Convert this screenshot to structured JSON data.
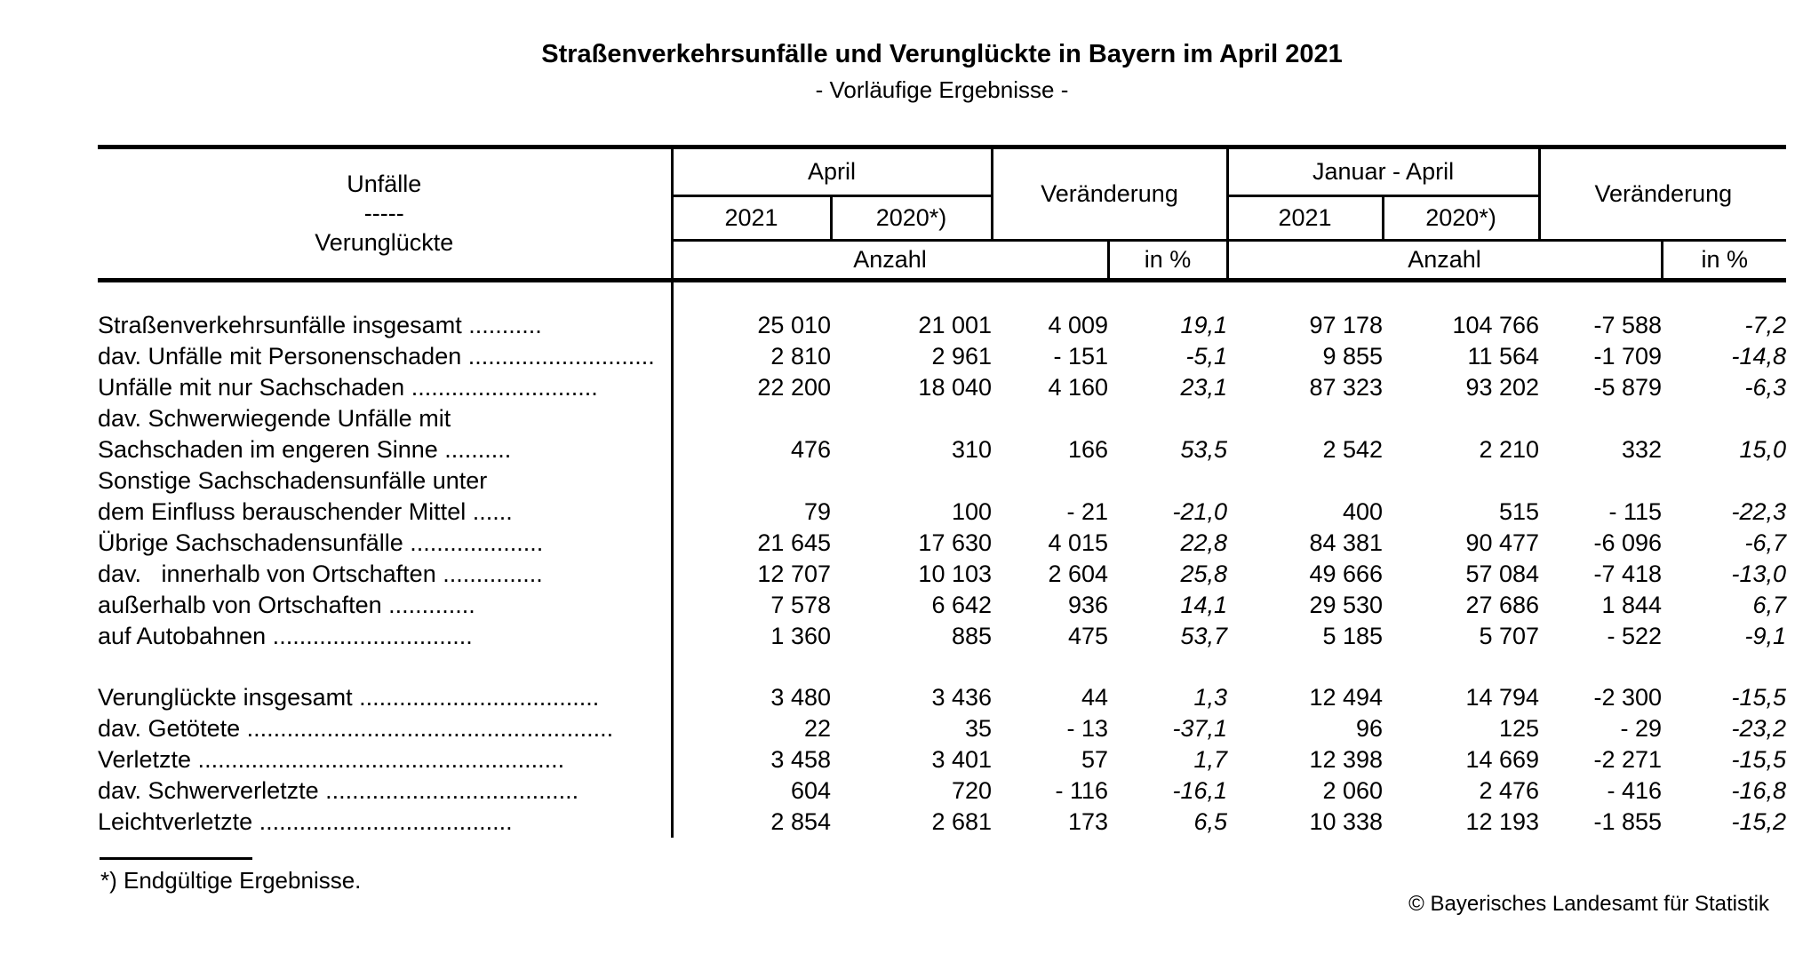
{
  "title": "Straßenverkehrsunfälle und Verunglückte in Bayern im April 2021",
  "subtitle": "- Vorläufige Ergebnisse -",
  "table": {
    "header": {
      "row_label_line1": "Unfälle",
      "row_label_sep": "-----",
      "row_label_line2": "Verunglückte",
      "group_april": "April",
      "group_januar_april": "Januar - April",
      "change_label": "Veränderung",
      "year_2021": "2021",
      "year_2020": "2020*)",
      "anzahl_label": "Anzahl",
      "in_percent_label": "in %"
    },
    "rows": [
      {
        "label": "Straßenverkehrsunfälle insgesamt ...........",
        "indent": 0,
        "bold": true,
        "spacer_before": false,
        "values": [
          "25 010",
          "21 001",
          "4 009",
          "19,1",
          "97 178",
          "104 766",
          "-7 588",
          "-7,2"
        ]
      },
      {
        "label": "dav. Unfälle mit Personenschaden ............................",
        "indent": 0,
        "bold": false,
        "spacer_before": false,
        "values": [
          "2 810",
          "2 961",
          "- 151",
          "-5,1",
          "9 855",
          "11 564",
          "-1 709",
          "-14,8"
        ]
      },
      {
        "label": "Unfälle mit nur Sachschaden ............................",
        "indent": 1,
        "bold": false,
        "spacer_before": false,
        "values": [
          "22 200",
          "18 040",
          "4 160",
          "23,1",
          "87 323",
          "93 202",
          "-5 879",
          "-6,3"
        ]
      },
      {
        "label": "dav. Schwerwiegende Unfälle mit",
        "indent": 1,
        "bold": false,
        "spacer_before": false,
        "values": [
          "",
          "",
          "",
          "",
          "",
          "",
          "",
          ""
        ]
      },
      {
        "label": "Sachschaden im engeren Sinne ..........",
        "indent": 3,
        "bold": false,
        "spacer_before": false,
        "values": [
          "476",
          "310",
          "166",
          "53,5",
          "2 542",
          "2 210",
          "332",
          "15,0"
        ]
      },
      {
        "label": "Sonstige Sachschadensunfälle unter",
        "indent": 2,
        "bold": false,
        "spacer_before": false,
        "values": [
          "",
          "",
          "",
          "",
          "",
          "",
          "",
          ""
        ]
      },
      {
        "label": "dem Einfluss berauschender Mittel ......",
        "indent": 3,
        "bold": false,
        "spacer_before": false,
        "values": [
          "79",
          "100",
          "- 21",
          "-21,0",
          "400",
          "515",
          "- 115",
          "-22,3"
        ]
      },
      {
        "label": "Übrige Sachschadensunfälle ....................",
        "indent": 2,
        "bold": false,
        "spacer_before": false,
        "values": [
          "21 645",
          "17 630",
          "4 015",
          "22,8",
          "84 381",
          "90 477",
          "-6 096",
          "-6,7"
        ]
      },
      {
        "label": "dav.   innerhalb von Ortschaften ...............",
        "indent": 2,
        "bold": false,
        "spacer_before": false,
        "values": [
          "12 707",
          "10 103",
          "2 604",
          "25,8",
          "49 666",
          "57 084",
          "-7 418",
          "-13,0"
        ]
      },
      {
        "label": "außerhalb von Ortschaften .............",
        "indent": 4,
        "bold": false,
        "spacer_before": false,
        "values": [
          "7 578",
          "6 642",
          "936",
          "14,1",
          "29 530",
          "27 686",
          "1 844",
          "6,7"
        ]
      },
      {
        "label": "auf Autobahnen ..............................",
        "indent": 4,
        "bold": false,
        "spacer_before": false,
        "values": [
          "1 360",
          "885",
          "475",
          "53,7",
          "5 185",
          "5 707",
          "- 522",
          "-9,1"
        ]
      },
      {
        "label": "Verunglückte insgesamt ....................................",
        "indent": 0,
        "bold": true,
        "spacer_before": true,
        "values": [
          "3 480",
          "3 436",
          "44",
          "1,3",
          "12 494",
          "14 794",
          "-2 300",
          "-15,5"
        ]
      },
      {
        "label": "dav. Getötete .......................................................",
        "indent": 0,
        "bold": false,
        "spacer_before": false,
        "values": [
          "22",
          "35",
          "- 13",
          "-37,1",
          "96",
          "125",
          "- 29",
          "-23,2"
        ]
      },
      {
        "label": "Verletzte .......................................................",
        "indent": 1,
        "bold": false,
        "spacer_before": false,
        "values": [
          "3 458",
          "3 401",
          "57",
          "1,7",
          "12 398",
          "14 669",
          "-2 271",
          "-15,5"
        ]
      },
      {
        "label": "dav. Schwerverletzte ......................................",
        "indent": 1,
        "bold": false,
        "spacer_before": false,
        "values": [
          "604",
          "720",
          "- 116",
          "-16,1",
          "2 060",
          "2 476",
          "- 416",
          "-16,8"
        ]
      },
      {
        "label": "Leichtverletzte ......................................",
        "indent": 2,
        "bold": false,
        "spacer_before": false,
        "values": [
          "2 854",
          "2 681",
          "173",
          "6,5",
          "10 338",
          "12 193",
          "-1 855",
          "-15,2"
        ]
      }
    ]
  },
  "footnote": "*) Endgültige Ergebnisse.",
  "copyright": "© Bayerisches Landesamt für Statistik"
}
